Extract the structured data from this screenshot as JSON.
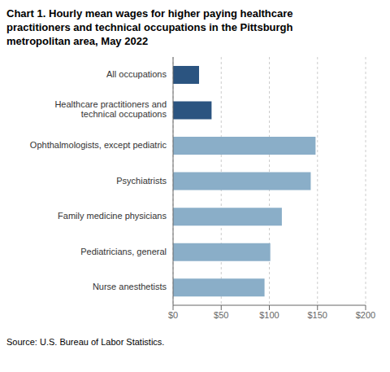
{
  "chart_data": {
    "type": "bar",
    "orientation": "horizontal",
    "title": "Chart 1. Hourly mean wages for higher paying healthcare\npractitioners and technical occupations in the Pittsburgh\nmetropolitan area, May 2022",
    "categories": [
      "Nurse anesthetists",
      "Pediatricians, general",
      "Family medicine physicians",
      "Psychiatrists",
      "Ophthalmologists, except pediatric",
      "Healthcare practitioners and\ntechnical occupations",
      "All occupations"
    ],
    "values": [
      95,
      101,
      113,
      143,
      148,
      40,
      27
    ],
    "colors": [
      "#8aaec8",
      "#8aaec8",
      "#8aaec8",
      "#8aaec8",
      "#8aaec8",
      "#2b5480",
      "#2b5480"
    ],
    "xlim": [
      0,
      200
    ],
    "xticks": [
      {
        "value": 0,
        "label": "$0"
      },
      {
        "value": 50,
        "label": "$50"
      },
      {
        "value": 100,
        "label": "$100"
      },
      {
        "value": 150,
        "label": "$150"
      },
      {
        "value": 200,
        "label": "$200"
      }
    ],
    "grid": true,
    "source": "Source: U.S. Bureau of Labor Statistics."
  }
}
